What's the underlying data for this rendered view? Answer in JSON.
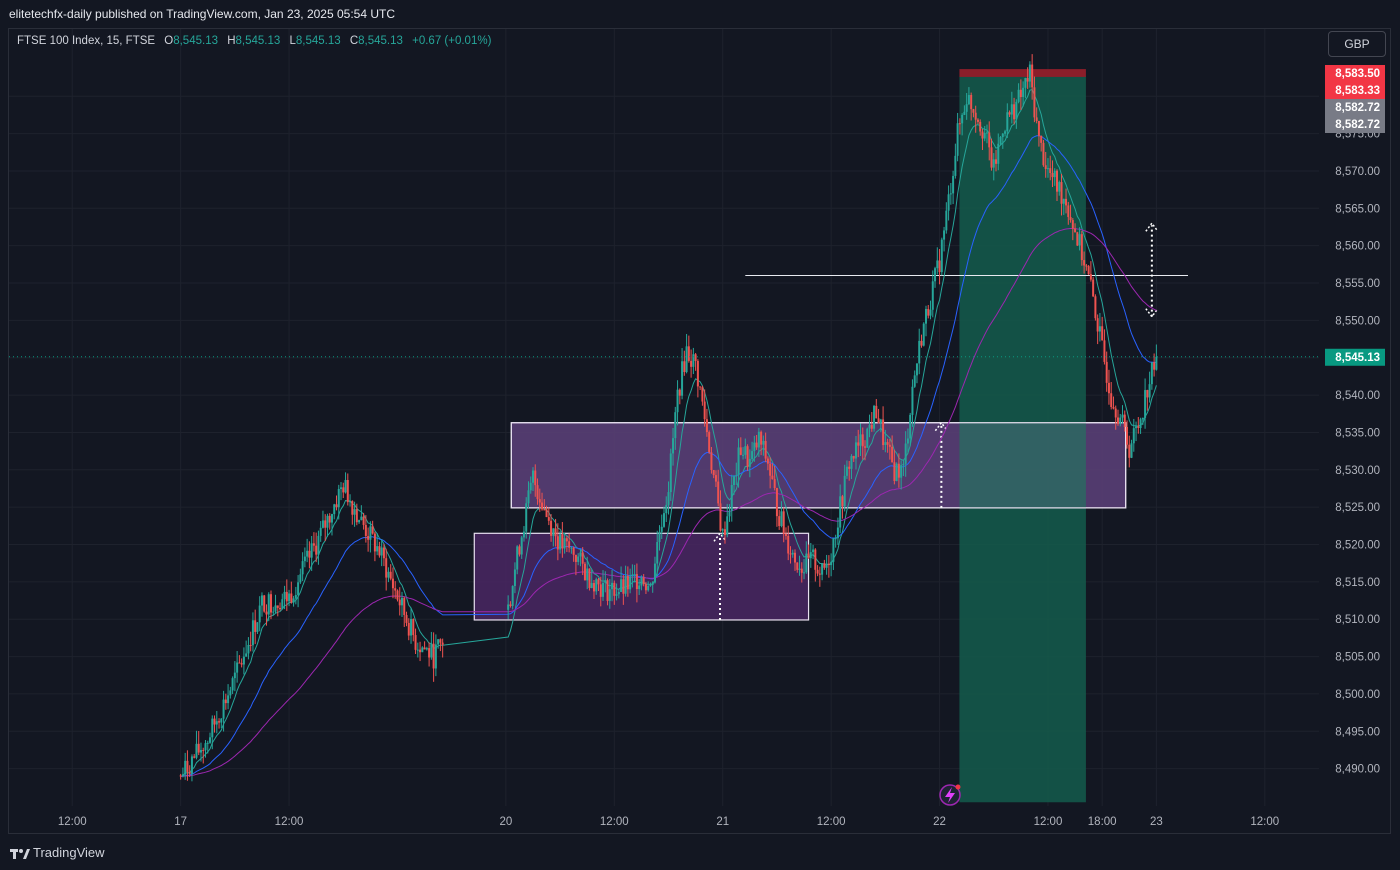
{
  "header": {
    "publisher_line": "elitetechfx-daily published on TradingView.com, Jan 23, 2025 05:54 UTC"
  },
  "legend": {
    "symbol": "FTSE 100 Index, 15, FTSE",
    "open_label": "O",
    "open": "8,545.13",
    "high_label": "H",
    "high": "8,545.13",
    "low_label": "L",
    "low": "8,545.13",
    "close_label": "C",
    "close": "8,545.13",
    "change": "+0.67 (+0.01%)"
  },
  "currency_button": "GBP",
  "footer": {
    "brand": "TradingView"
  },
  "colors": {
    "background": "#131722",
    "grid": "#1e222d",
    "up": "#26a69a",
    "down": "#ef5350",
    "ema_fast": "#26a69a",
    "ema_mid": "#2962ff",
    "ema_slow": "#9c27b0",
    "zone_fill": "#4a2763",
    "zone_border": "#e8e0f0",
    "target_fill": "#145c4c",
    "stop_fill": "#8b1e2a"
  },
  "chart_data": {
    "type": "candlestick",
    "symbol": "FTSE 100 Index",
    "interval": "15",
    "ylim": [
      8485,
      8589
    ],
    "y_ticks": [
      8490,
      8495,
      8500,
      8505,
      8510,
      8515,
      8520,
      8525,
      8530,
      8535,
      8540,
      8545,
      8550,
      8555,
      8560,
      8565,
      8570,
      8575,
      8580
    ],
    "y_tick_labels": [
      "8,490.00",
      "8,495.00",
      "8,500.00",
      "8,505.00",
      "8,510.00",
      "8,515.00",
      "8,520.00",
      "8,525.00",
      "8,530.00",
      "8,535.00",
      "8,540.00",
      "8,545.00",
      "8,550.00",
      "8,555.00",
      "8,560.00",
      "8,565.00",
      "8,570.00",
      "8,575.00",
      "8,580.00"
    ],
    "x_ticks": [
      "12:00",
      "17",
      "12:00",
      "20",
      "12:00",
      "21",
      "12:00",
      "22",
      "12:00",
      "18:00",
      "23",
      "12:00"
    ],
    "x_tick_positions_hours": [
      -48,
      -36,
      -24,
      0,
      12,
      24,
      36,
      48,
      60,
      66,
      72,
      84
    ],
    "time_axis_unit": "hours from Jan 20 00:00 (Jan 18–19 weekend skipped)",
    "x_range_hours": [
      -55,
      90
    ],
    "price_labels": [
      {
        "text": "8,583.50",
        "value": 8583.5,
        "color": "#f23645"
      },
      {
        "text": "8,583.33",
        "value": 8583.33,
        "color": "#f23645"
      },
      {
        "text": "8,582.72",
        "value": 8582.72,
        "color": "#787b86"
      },
      {
        "text": "8,582.72",
        "value": 8582.72,
        "color": "#787b86"
      },
      {
        "text": "8,545.13",
        "value": 8545.13,
        "color": "#089981"
      }
    ],
    "current_price": 8545.13,
    "zones": [
      {
        "name": "lower demand zone",
        "x0": -3.5,
        "x1": 33.5,
        "y0": 8509.9,
        "y1": 8521.5
      },
      {
        "name": "upper demand zone",
        "x0": 0.6,
        "x1": 68.6,
        "y0": 8524.9,
        "y1": 8536.3
      }
    ],
    "position": {
      "entry": 8582.72,
      "stop": 8583.5,
      "target": 8485.5,
      "x0": 50.2,
      "x1": 64.2
    },
    "horizontal_line": {
      "value": 8556.0,
      "x0": 26.5,
      "x1": 75.5
    },
    "arrows": [
      {
        "x": 23.7,
        "from": 8509.9,
        "to": 8521.5
      },
      {
        "x": 48.2,
        "from": 8524.9,
        "to": 8536.3
      },
      {
        "x": 71.5,
        "from": 8550.5,
        "to": 8563.0,
        "double": true
      }
    ],
    "price_path": [
      [
        -36,
        8489
      ],
      [
        -33,
        8494
      ],
      [
        -30,
        8502
      ],
      [
        -27,
        8512
      ],
      [
        -24,
        8513
      ],
      [
        -21,
        8520
      ],
      [
        -18,
        8528
      ],
      [
        -16,
        8523
      ],
      [
        -14,
        8519
      ],
      [
        -12,
        8513
      ],
      [
        -10,
        8507
      ],
      [
        -8,
        8505
      ],
      [
        -7,
        8507
      ],
      [
        0,
        8510
      ],
      [
        1.5,
        8520
      ],
      [
        3,
        8529
      ],
      [
        4.5,
        8524
      ],
      [
        6,
        8520
      ],
      [
        7.5,
        8519
      ],
      [
        9,
        8516
      ],
      [
        11,
        8514
      ],
      [
        13,
        8514
      ],
      [
        15,
        8516
      ],
      [
        16,
        8514
      ],
      [
        17,
        8522
      ],
      [
        18,
        8528
      ],
      [
        19,
        8540
      ],
      [
        20,
        8546
      ],
      [
        21,
        8544
      ],
      [
        22,
        8537
      ],
      [
        23,
        8529
      ],
      [
        24,
        8521
      ],
      [
        25,
        8527
      ],
      [
        26,
        8533
      ],
      [
        27,
        8531
      ],
      [
        28,
        8534
      ],
      [
        29,
        8531
      ],
      [
        30,
        8525
      ],
      [
        31,
        8521
      ],
      [
        32,
        8518
      ],
      [
        33,
        8517
      ],
      [
        34,
        8518
      ],
      [
        35,
        8516
      ],
      [
        36,
        8519
      ],
      [
        37,
        8525
      ],
      [
        38,
        8531
      ],
      [
        39,
        8533
      ],
      [
        40,
        8535
      ],
      [
        41,
        8538
      ],
      [
        42,
        8533
      ],
      [
        43,
        8530
      ],
      [
        44,
        8530
      ],
      [
        45,
        8541
      ],
      [
        46,
        8548
      ],
      [
        48,
        8558
      ],
      [
        49,
        8566
      ],
      [
        50,
        8575
      ],
      [
        51,
        8580
      ],
      [
        52,
        8578
      ],
      [
        53,
        8575
      ],
      [
        54,
        8570
      ],
      [
        55,
        8576
      ],
      [
        56,
        8578
      ],
      [
        57,
        8580
      ],
      [
        58,
        8583
      ],
      [
        59,
        8574
      ],
      [
        60,
        8570
      ],
      [
        61,
        8568
      ],
      [
        62,
        8566
      ],
      [
        63,
        8562
      ],
      [
        64,
        8558
      ],
      [
        65,
        8553
      ],
      [
        66,
        8546
      ],
      [
        67,
        8540
      ],
      [
        68,
        8537
      ],
      [
        69,
        8533
      ],
      [
        70,
        8536
      ],
      [
        71,
        8541
      ],
      [
        72,
        8545
      ]
    ]
  }
}
